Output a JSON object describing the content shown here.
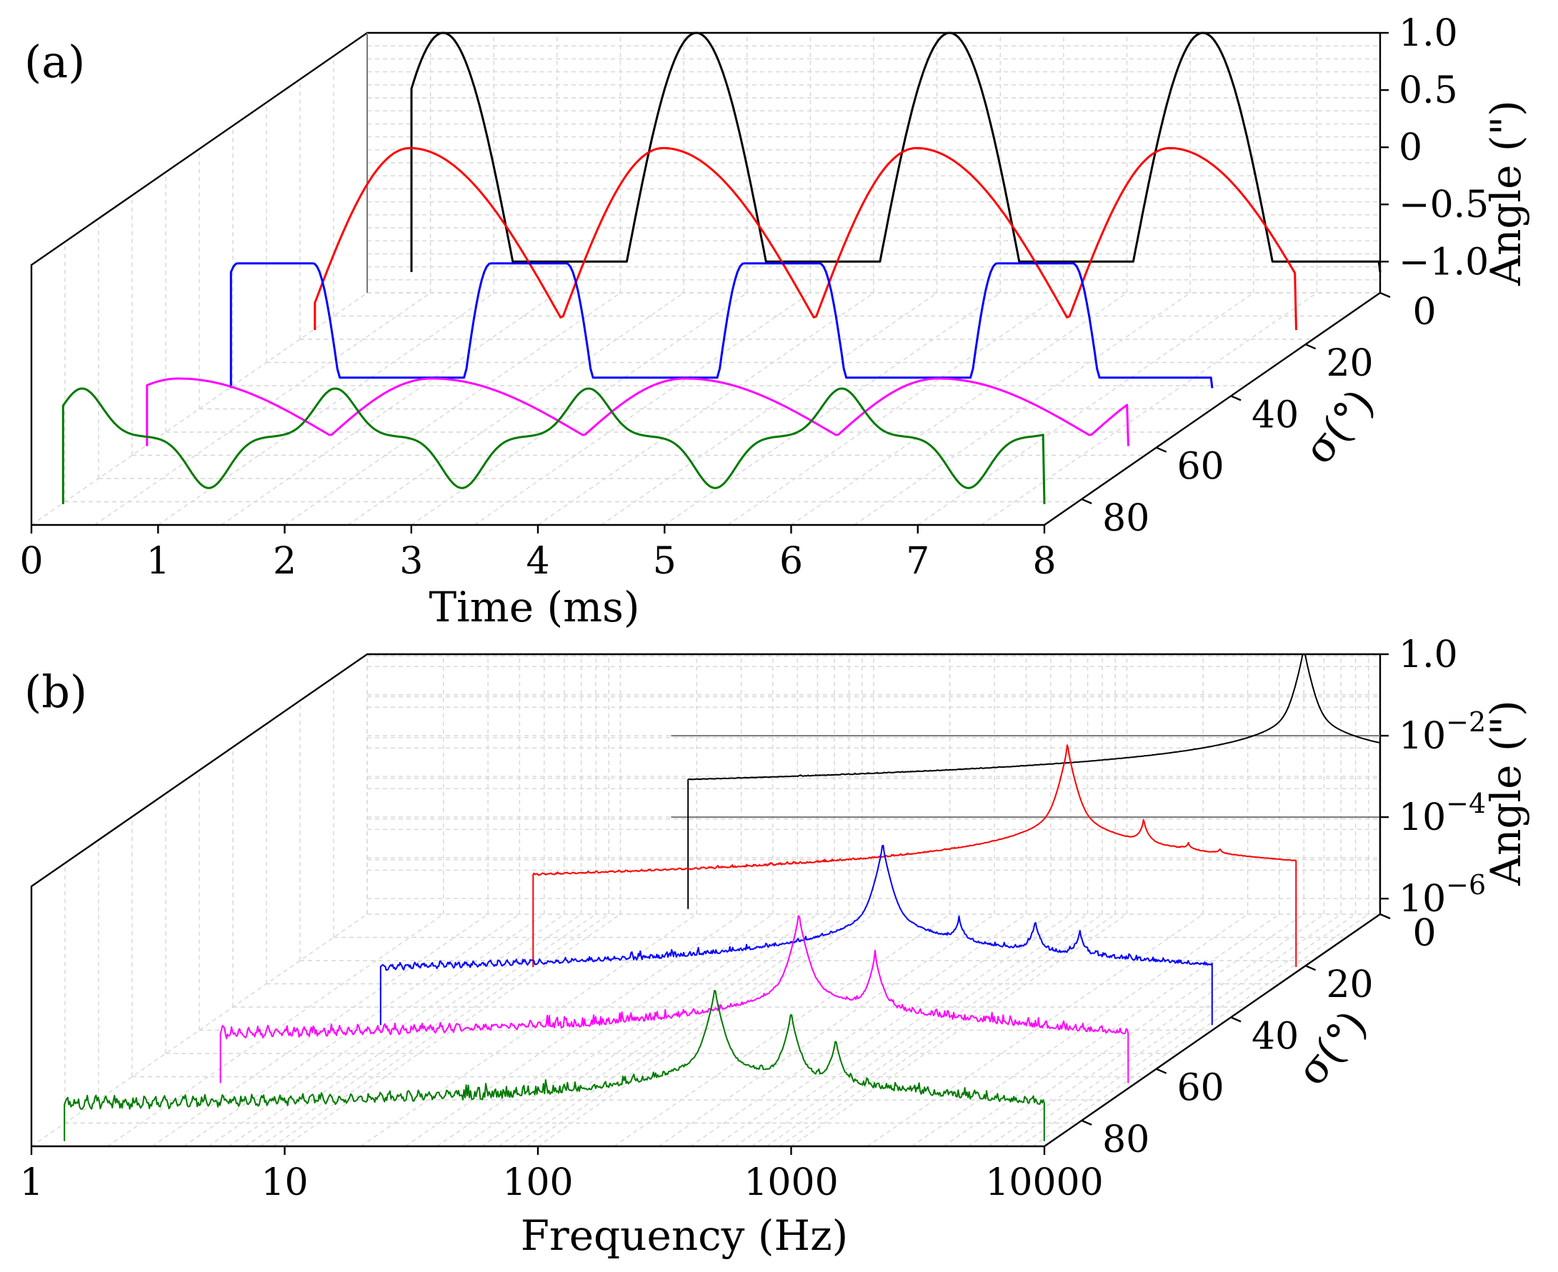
{
  "colors": {
    "black": "#000000",
    "red": "#ff0000",
    "blue": "#0000ff",
    "magenta": "#ff00ff",
    "green": "#007a00"
  },
  "chart_data": [
    {
      "type": "line",
      "panel_label": "(a)",
      "projection": "3d-waterfall",
      "xlabel": "Time (ms)",
      "ylabel": "Angle (\")",
      "zlabel": "σ(°)",
      "xlim": [
        0,
        8
      ],
      "ylim": [
        -1.0,
        1.0
      ],
      "zlim": [
        0,
        90
      ],
      "xticks": [
        "0",
        "1",
        "2",
        "3",
        "4",
        "5",
        "6",
        "7",
        "8"
      ],
      "yticks": [
        "1.0",
        "0.5",
        "0",
        "−0.5",
        "−1.0"
      ],
      "zticks": [
        "0",
        "20",
        "40",
        "60",
        "80"
      ],
      "grid": true,
      "period_ms": 2.0,
      "series": [
        {
          "sigma": 0,
          "color": "black",
          "shape": "half-sine",
          "peaks_ms": [
            0.6,
            2.6,
            4.6,
            6.6
          ],
          "amplitude": 1.0,
          "x": [
            0.3,
            0.6,
            0.9,
            2.3,
            2.6,
            2.9,
            4.3,
            4.6,
            4.9,
            6.3,
            6.6,
            6.9,
            8.0
          ],
          "y": [
            -1.0,
            1.0,
            -1.0,
            -1.0,
            1.0,
            -1.0,
            -1.0,
            1.0,
            -1.0,
            -1.0,
            1.0,
            -1.0,
            -1.0
          ]
        },
        {
          "sigma": 22.5,
          "color": "red",
          "shape": "skewed",
          "peaks_ms": [
            1.0,
            3.0,
            5.0,
            7.0
          ],
          "amplitude": 0.5,
          "x": [
            0.0,
            1.0,
            1.8,
            2.0,
            3.0,
            3.8,
            4.0,
            5.0,
            5.8,
            6.0,
            7.0,
            7.8,
            8.0
          ],
          "y": [
            -0.9,
            0.5,
            -1.0,
            -0.9,
            0.5,
            -1.0,
            -0.9,
            0.5,
            -1.0,
            -0.9,
            0.5,
            -1.0,
            -0.9
          ]
        },
        {
          "sigma": 45,
          "color": "blue",
          "shape": "flat-top",
          "peaks_ms": [
            0.6,
            2.6,
            4.6,
            6.6
          ],
          "amplitude": 0.0,
          "x": [
            0.2,
            0.6,
            1.0,
            2.2,
            2.6,
            3.0,
            4.2,
            4.6,
            5.0,
            6.2,
            6.6,
            7.0,
            8.0
          ],
          "y": [
            -1.0,
            0.0,
            -1.0,
            -1.0,
            0.0,
            -1.0,
            -1.0,
            0.0,
            -1.0,
            -1.0,
            0.0,
            -1.0,
            -1.0
          ]
        },
        {
          "sigma": 67.5,
          "color": "magenta",
          "shape": "skewed",
          "peaks_ms": [
            0.5,
            2.5,
            4.5,
            6.5
          ],
          "amplitude": -0.5,
          "x": [
            0.0,
            0.5,
            1.4,
            2.0,
            2.5,
            3.4,
            4.0,
            4.5,
            5.4,
            6.0,
            6.5,
            7.4,
            8.0
          ],
          "y": [
            -0.9,
            -0.5,
            -1.0,
            -0.9,
            -0.5,
            -1.0,
            -0.9,
            -0.5,
            -1.0,
            -0.9,
            -0.5,
            -1.0,
            -0.9
          ]
        },
        {
          "sigma": 90,
          "color": "green",
          "shape": "peak-trough",
          "peaks_ms": [
            0.4,
            2.4,
            4.4,
            6.4
          ],
          "troughs_ms": [
            1.4,
            3.4,
            5.4,
            7.4
          ],
          "x": [
            0.25,
            0.4,
            0.9,
            1.4,
            1.9,
            2.4,
            2.9,
            3.4,
            3.9,
            4.4,
            4.9,
            5.4,
            5.9,
            6.4,
            6.9,
            7.4,
            8.0
          ],
          "y": [
            -0.25,
            -0.1,
            -0.45,
            -0.95,
            -0.45,
            -0.1,
            -0.45,
            -0.95,
            -0.45,
            -0.1,
            -0.45,
            -0.95,
            -0.45,
            -0.1,
            -0.45,
            -0.95,
            -0.25
          ]
        }
      ]
    },
    {
      "type": "line",
      "panel_label": "(b)",
      "projection": "3d-waterfall",
      "xlabel": "Frequency (Hz)",
      "ylabel": "Angle (\")",
      "zlabel": "σ(°)",
      "xscale": "log",
      "yscale": "log",
      "xlim": [
        1,
        10000
      ],
      "ylim": [
        1e-06,
        1.0
      ],
      "zlim": [
        0,
        90
      ],
      "xticks": [
        "1",
        "10",
        "100",
        "1000",
        "10000"
      ],
      "yticks": [
        "1.0",
        "10",
        "10",
        "10",
        "10"
      ],
      "ytick_exponents": [
        "",
        "−2",
        "−4",
        "−6",
        ""
      ],
      "zticks": [
        "0",
        "20",
        "40",
        "60",
        "80"
      ],
      "grid": true,
      "series": [
        {
          "sigma": 0,
          "color": "black",
          "peaks_hz": [
            5000,
            10000,
            15000
          ],
          "peak_values": [
            1.0,
            0.0001,
            5e-05
          ],
          "floor": 2e-05
        },
        {
          "sigma": 22.5,
          "color": "red",
          "peaks_hz": [
            1250,
            2500,
            3750,
            5000
          ],
          "peak_values": [
            0.1,
            0.001,
            0.0001,
            5e-05
          ],
          "floor": 1e-05
        },
        {
          "sigma": 45,
          "color": "blue",
          "peaks_hz": [
            500,
            1000,
            2000,
            3000
          ],
          "peak_values": [
            0.01,
            0.0001,
            0.0001,
            5e-05
          ],
          "floor": 5e-06
        },
        {
          "sigma": 67.5,
          "color": "magenta",
          "peaks_hz": [
            500,
            1000
          ],
          "peak_values": [
            0.005,
            0.0005
          ],
          "floor": 5e-06
        },
        {
          "sigma": 90,
          "color": "green",
          "peaks_hz": [
            500,
            1000,
            1500
          ],
          "peak_values": [
            0.002,
            0.0005,
            0.0001
          ],
          "floor": 3e-06
        }
      ]
    }
  ]
}
